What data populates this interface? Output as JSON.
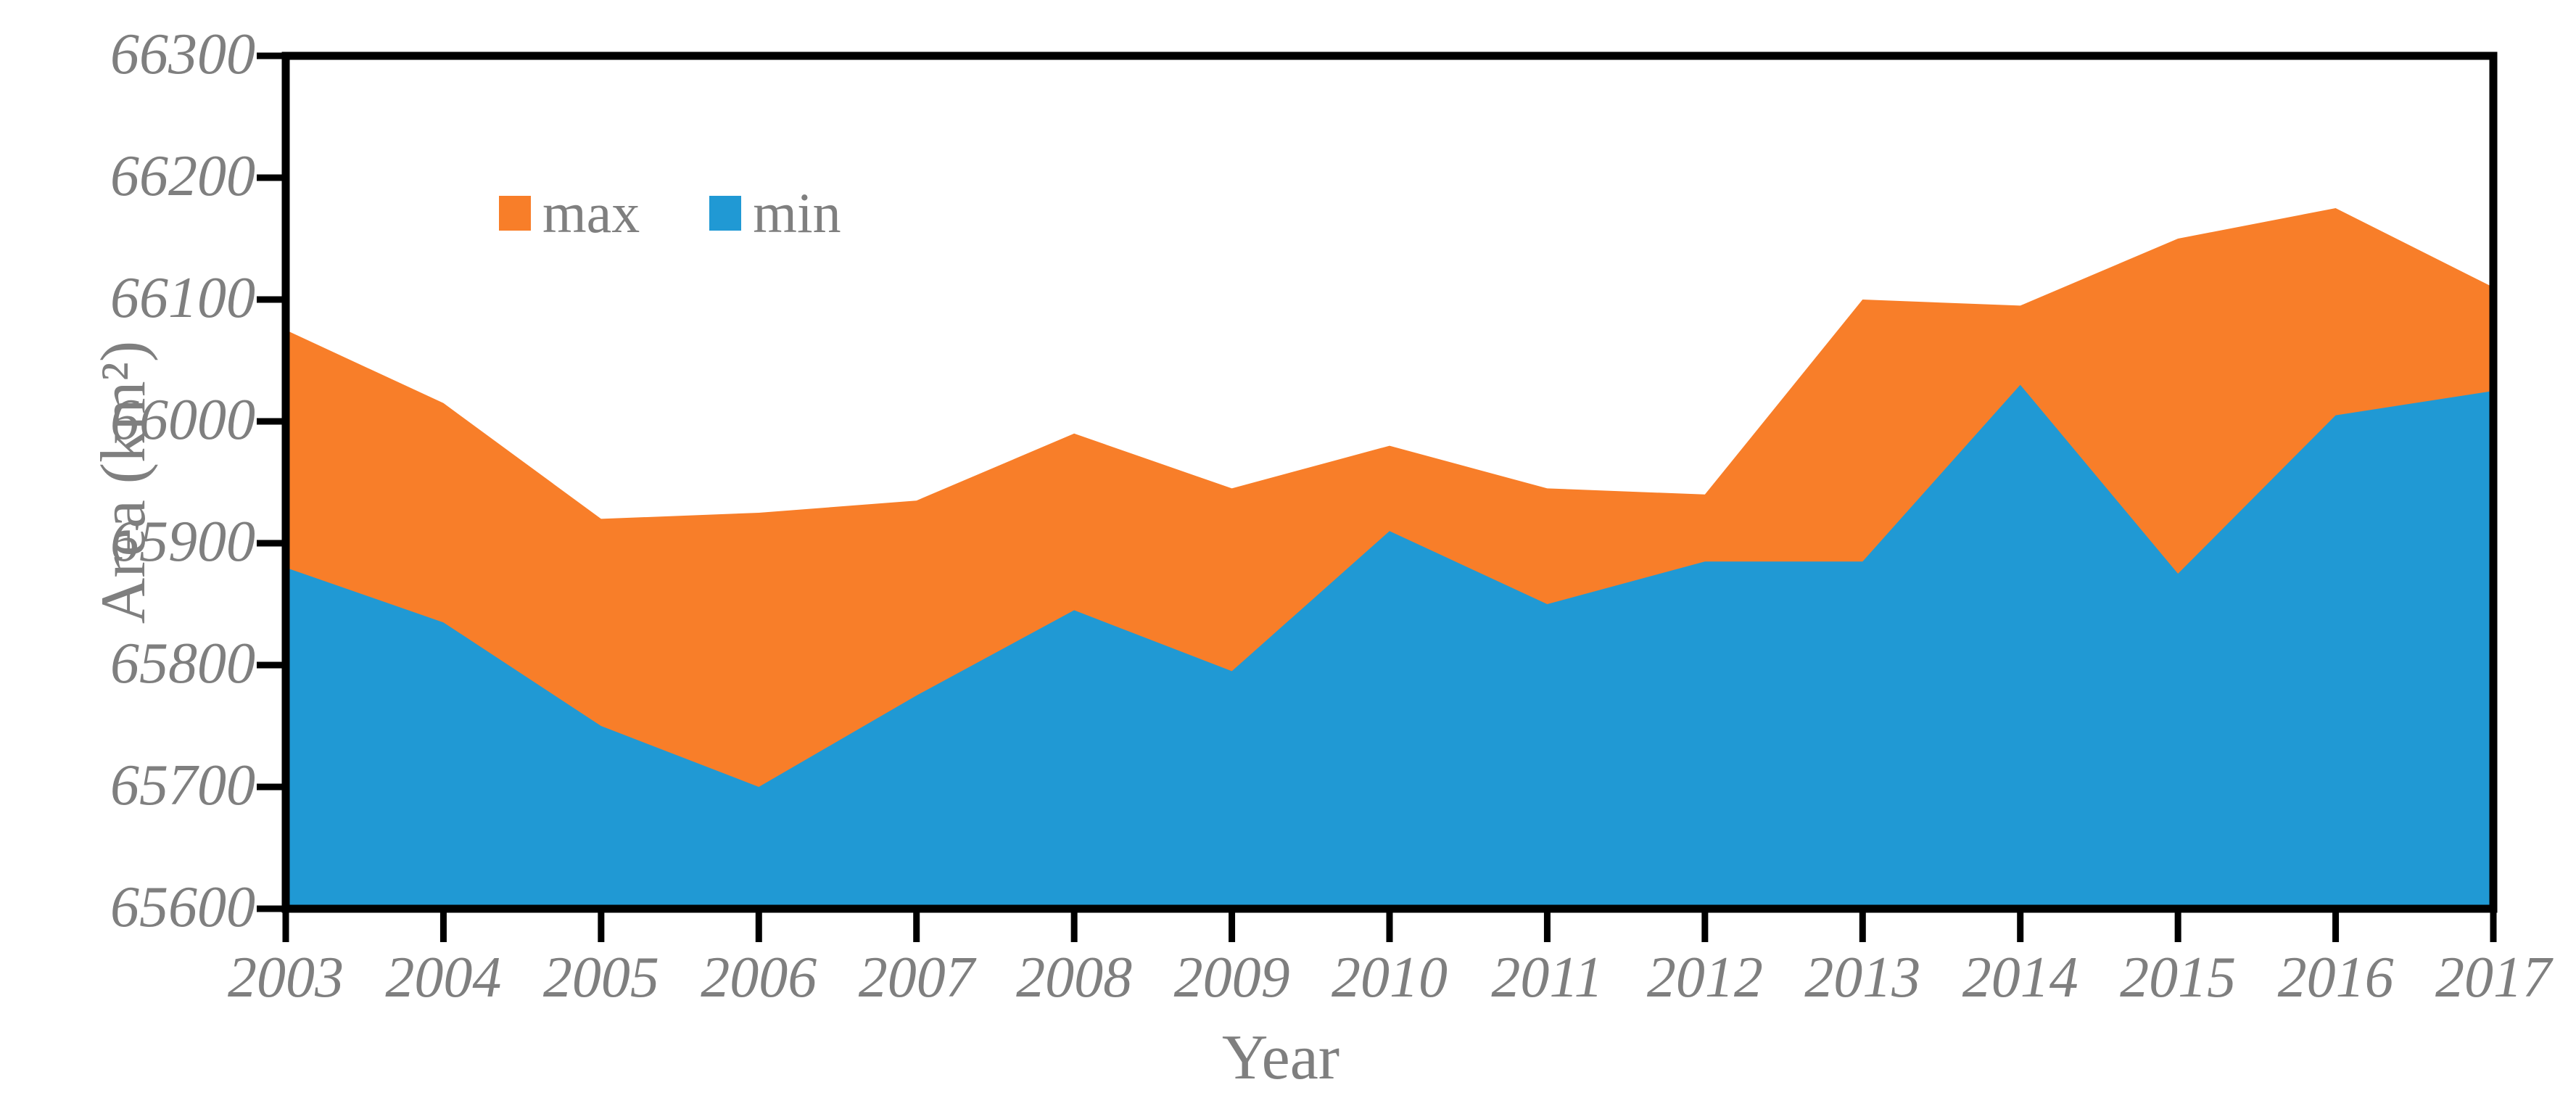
{
  "chart_data": {
    "type": "area",
    "title": "",
    "xlabel": "Year",
    "ylabel": "Area (km²)",
    "x": [
      2003,
      2004,
      2005,
      2006,
      2007,
      2008,
      2009,
      2010,
      2011,
      2012,
      2013,
      2014,
      2015,
      2016,
      2017
    ],
    "series": [
      {
        "name": "max",
        "color": "#F87E29",
        "values": [
          66075,
          66015,
          65920,
          65925,
          65935,
          65990,
          65945,
          65980,
          65945,
          65940,
          66100,
          66095,
          66150,
          66175,
          66110
        ]
      },
      {
        "name": "min",
        "color": "#2099D4",
        "values": [
          65880,
          65835,
          65750,
          65700,
          65775,
          65845,
          65795,
          65910,
          65850,
          65885,
          65885,
          66030,
          65875,
          66005,
          66025
        ]
      }
    ],
    "ylim": [
      65600,
      66300
    ],
    "ytick_step": 100,
    "baseline": 65600,
    "grid": false,
    "legend_position": "top-left-inside",
    "axis_color": "#000000",
    "label_color": "#7f7f7f"
  }
}
